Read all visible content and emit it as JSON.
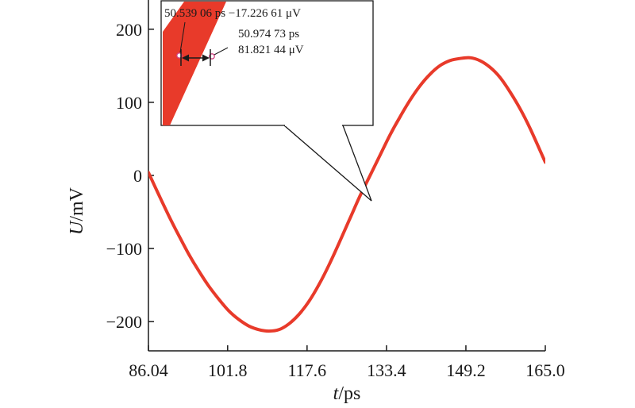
{
  "chart_data": {
    "type": "line",
    "title": "",
    "xlabel_var": "t",
    "xlabel_unit": "/ps",
    "ylabel_var": "U",
    "ylabel_unit": "/mV",
    "xlim": [
      86.04,
      165.0
    ],
    "ylim": [
      -240,
      240
    ],
    "x_ticks": [
      86.04,
      101.8,
      117.6,
      133.4,
      149.2,
      165.0
    ],
    "x_tick_labels": [
      "86.04",
      "101.8",
      "117.6",
      "133.4",
      "149.2",
      "165.0"
    ],
    "y_ticks": [
      200,
      100,
      0,
      -100,
      -200
    ],
    "y_tick_labels": [
      "200",
      "100",
      "0",
      "−100",
      "−200"
    ],
    "grid": false,
    "series": [
      {
        "color": "#e83a2a",
        "x": [
          86.04,
          88,
          90,
          92,
          94,
          96,
          98,
          100,
          102,
          104,
          106,
          108,
          110,
          112,
          114,
          116,
          118,
          120,
          122,
          124,
          126,
          128,
          130,
          132,
          134,
          136,
          138,
          140,
          142,
          144,
          146,
          148,
          150,
          152,
          154,
          156,
          158,
          160,
          162,
          165.0
        ],
        "y": [
          4,
          -25,
          -54,
          -81,
          -107,
          -130,
          -151,
          -169,
          -185,
          -197,
          -206,
          -211,
          -213,
          -211,
          -203,
          -190,
          -172,
          -149,
          -122,
          -92,
          -61,
          -30,
          -2,
          26,
          54,
          79,
          102,
          122,
          138,
          150,
          157,
          160,
          161,
          157,
          148,
          134,
          114,
          91,
          64,
          18
        ]
      }
    ],
    "annotations": [
      {
        "line1": "50.539 06 ps  −17.226 61 μV"
      },
      {
        "line1": "50.974 73 ps",
        "line2": "81.821 44 μV"
      }
    ]
  }
}
